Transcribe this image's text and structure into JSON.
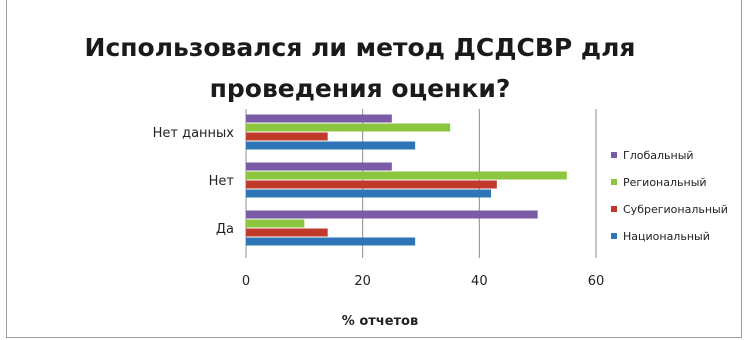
{
  "chart_data": {
    "type": "bar",
    "orientation": "horizontal",
    "title_lines": [
      "Использовался ли метод ДСДСВР  для",
      "проведения оценки?"
    ],
    "xlabel": "% отчетов",
    "ylabel": "",
    "categories": [
      "Нет данных",
      "Нет",
      "Да"
    ],
    "series": [
      {
        "name": "Глобальный",
        "color": "#7b5aa6",
        "values": [
          25,
          25,
          50
        ]
      },
      {
        "name": "Региональный",
        "color": "#8cc63f",
        "values": [
          35,
          55,
          10
        ]
      },
      {
        "name": "Субрегиональный",
        "color": "#c0392b",
        "values": [
          14,
          43,
          14
        ]
      },
      {
        "name": "Национальный",
        "color": "#2e75b6",
        "values": [
          29,
          42,
          29
        ]
      }
    ],
    "xlim": [
      0,
      60
    ],
    "xticks": [
      "0",
      "20",
      "40",
      "60"
    ],
    "grid": true,
    "legend_position": "right"
  }
}
